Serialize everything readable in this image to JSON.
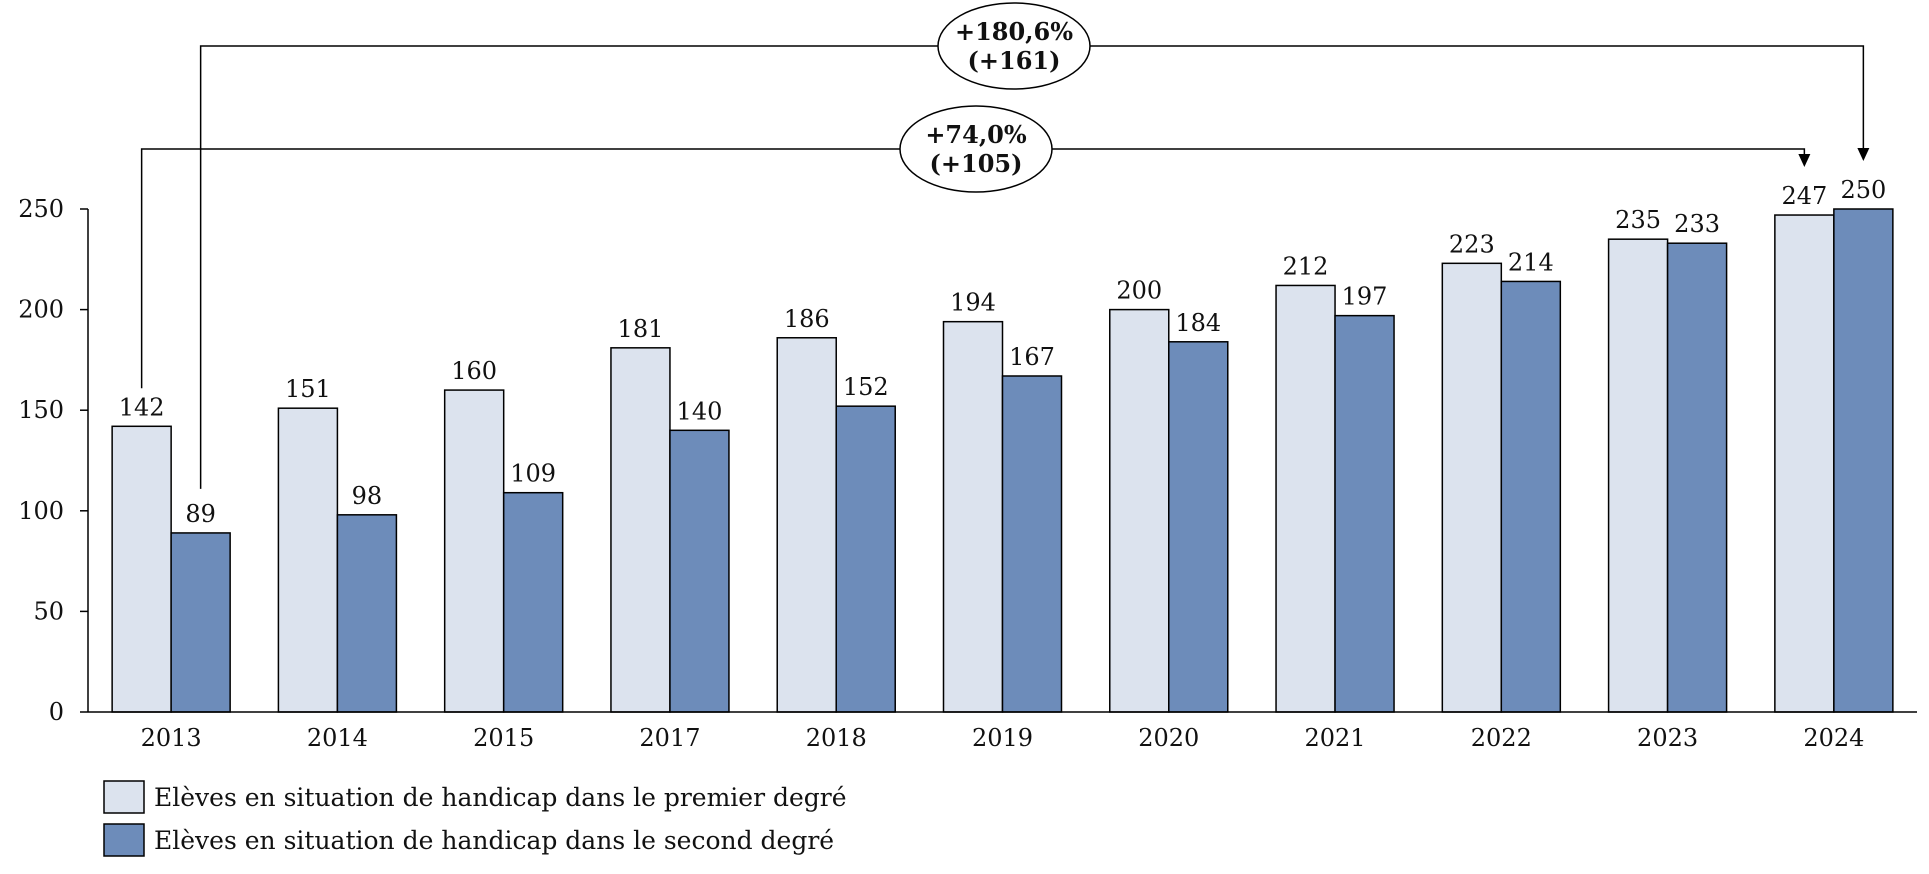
{
  "chart_data": {
    "type": "bar",
    "categories": [
      "2013",
      "2014",
      "2015",
      "2017",
      "2018",
      "2019",
      "2020",
      "2021",
      "2022",
      "2023",
      "2024"
    ],
    "series": [
      {
        "name": "Elèves en situation de handicap dans le premier degré",
        "color": "#dce3ee",
        "values": [
          142,
          151,
          160,
          181,
          186,
          194,
          200,
          212,
          223,
          235,
          247
        ],
        "labels": [
          "142",
          "151",
          "160",
          "181",
          "186",
          "194",
          "200",
          "212",
          "223",
          "235",
          "247"
        ]
      },
      {
        "name": "Elèves en situation de handicap dans le second degré",
        "color": "#6d8cba",
        "values": [
          89,
          98,
          109,
          140,
          152,
          167,
          184,
          197,
          214,
          233,
          250
        ],
        "labels": [
          "89",
          "98",
          "109",
          "140",
          "152",
          "167",
          "184",
          "197",
          "214",
          "233",
          "250"
        ]
      }
    ],
    "ylim": [
      0,
      250
    ],
    "yticks": [
      0,
      50,
      100,
      150,
      200,
      250
    ],
    "ytick_labels": [
      "0",
      "50",
      "100",
      "150",
      "200",
      "250"
    ],
    "grid": false,
    "legend_position": "bottom-left",
    "annotations": [
      {
        "series": 1,
        "from": "2013",
        "to": "2024",
        "pct": "+180,6%",
        "abs": "(+161)"
      },
      {
        "series": 0,
        "from": "2013",
        "to": "2024",
        "pct": "+74,0%",
        "abs": "(+105)"
      }
    ]
  }
}
